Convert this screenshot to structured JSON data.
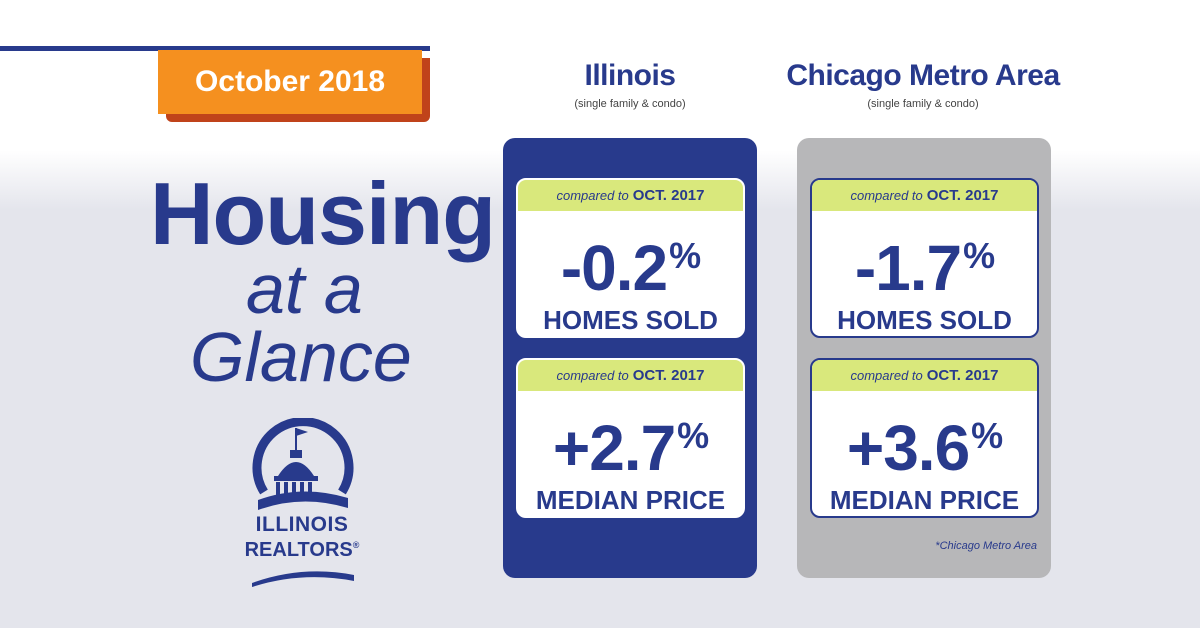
{
  "banner": {
    "date": "October 2018"
  },
  "headline": {
    "line1": "Housing",
    "line2": "at a",
    "line3": "Glance"
  },
  "logo": {
    "line1": "ILLINOIS",
    "line2": "REALTORS",
    "mark": "®",
    "icon": "capitol-dome-icon"
  },
  "colors": {
    "navy": "#283a8c",
    "orange": "#f5901f",
    "lime": "#d9e87c",
    "gray": "#b7b7b9"
  },
  "columns": [
    {
      "title": "Illinois",
      "subtitle": "(single family & condo)",
      "cards": [
        {
          "compared_prefix": "compared to",
          "compared_period": "OCT. 2017",
          "value": "-0.2",
          "unit": "%",
          "label": "HOMES SOLD"
        },
        {
          "compared_prefix": "compared to",
          "compared_period": "OCT. 2017",
          "value": "+2.7",
          "unit": "%",
          "label": "MEDIAN PRICE"
        }
      ]
    },
    {
      "title": "Chicago Metro Area",
      "subtitle": "(single family & condo)",
      "cards": [
        {
          "compared_prefix": "compared to",
          "compared_period": "OCT. 2017",
          "value": "-1.7",
          "unit": "%",
          "label": "HOMES SOLD"
        },
        {
          "compared_prefix": "compared to",
          "compared_period": "OCT. 2017",
          "value": "+3.6",
          "unit": "%",
          "label": "MEDIAN PRICE"
        }
      ],
      "footnote": "*Chicago Metro Area"
    }
  ]
}
